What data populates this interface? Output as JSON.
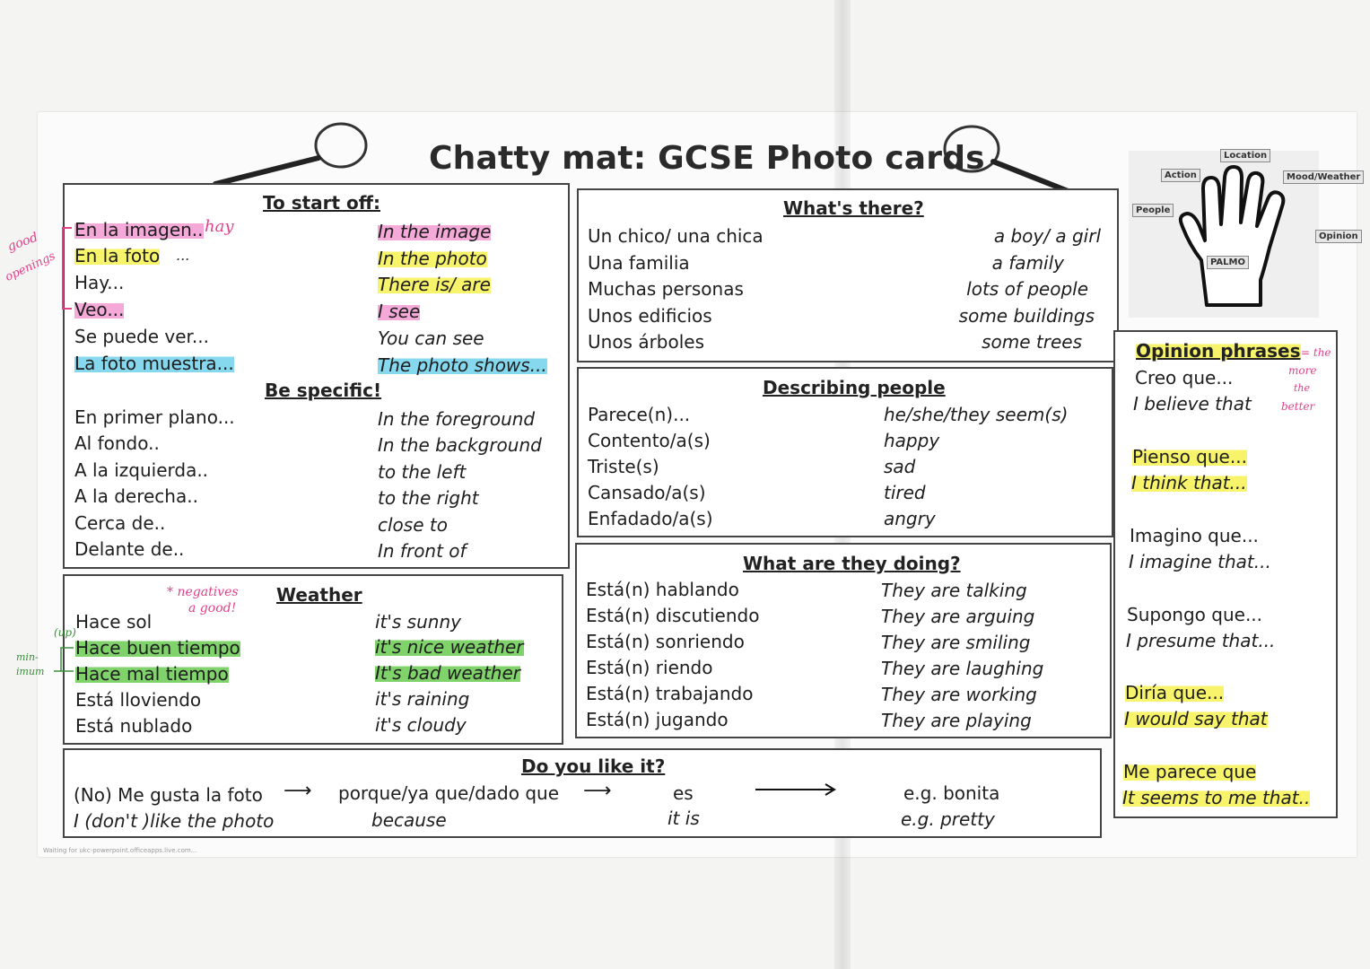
{
  "title": "Chatty mat: GCSE Photo cards",
  "start": {
    "heading": "To start off:",
    "rows": [
      {
        "es": "En la imagen..",
        "en": "In the image"
      },
      {
        "es": "En la foto",
        "en": "In the photo"
      },
      {
        "es": "Hay...",
        "en": "There is/ are"
      },
      {
        "es": "Veo...",
        "en": "I see"
      },
      {
        "es": "Se puede ver...",
        "en": "You can see"
      },
      {
        "es": "La foto muestra...",
        "en": "The photo shows..."
      }
    ],
    "specific_heading": "Be specific!",
    "specific_rows": [
      {
        "es": "En primer plano...",
        "en": "In the foreground"
      },
      {
        "es": "Al fondo..",
        "en": "In the background"
      },
      {
        "es": "A la izquierda..",
        "en": "to the left"
      },
      {
        "es": "A la derecha..",
        "en": "to the right"
      },
      {
        "es": "Cerca de..",
        "en": "close to"
      },
      {
        "es": "Delante de..",
        "en": "In front of"
      }
    ]
  },
  "weather": {
    "heading": "Weather",
    "rows": [
      {
        "es": "Hace sol",
        "en": "it's sunny"
      },
      {
        "es": "Hace buen tiempo",
        "en": "it's nice weather"
      },
      {
        "es": "Hace mal tiempo",
        "en": "It's bad weather"
      },
      {
        "es": "Está lloviendo",
        "en": "it's raining"
      },
      {
        "es": "Está nublado",
        "en": "it's cloudy"
      }
    ]
  },
  "whats_there": {
    "heading": "What's there?",
    "rows": [
      {
        "es": "Un chico/ una chica",
        "en": "a boy/ a girl"
      },
      {
        "es": "Una familia",
        "en": "a family"
      },
      {
        "es": "Muchas personas",
        "en": "lots of people"
      },
      {
        "es": "Unos edificios",
        "en": "some buildings"
      },
      {
        "es": "Unos árboles",
        "en": "some trees"
      }
    ]
  },
  "describing": {
    "heading": "Describing people",
    "rows": [
      {
        "es": "Parece(n)...",
        "en": "he/she/they seem(s)"
      },
      {
        "es": "Contento/a(s)",
        "en": "happy"
      },
      {
        "es": "Triste(s)",
        "en": "sad"
      },
      {
        "es": "Cansado/a(s)",
        "en": "tired"
      },
      {
        "es": "Enfadado/a(s)",
        "en": "angry"
      }
    ]
  },
  "doing": {
    "heading": "What are they doing?",
    "rows": [
      {
        "es": "Está(n) hablando",
        "en": "They are talking"
      },
      {
        "es": "Está(n) discutiendo",
        "en": "They are arguing"
      },
      {
        "es": "Está(n) sonriendo",
        "en": "They are smiling"
      },
      {
        "es": "Está(n) riendo",
        "en": "They are laughing"
      },
      {
        "es": "Está(n) trabajando",
        "en": "They are working"
      },
      {
        "es": "Está(n) jugando",
        "en": "They are playing"
      }
    ]
  },
  "like": {
    "heading": "Do you like it?",
    "es1": "(No) Me gusta la foto",
    "en1": "I (don't )like the photo",
    "es2": "porque/ya que/dado que",
    "en2": "because",
    "es3": "es",
    "en3": "it is",
    "es4": "e.g. bonita",
    "en4": "e.g. pretty"
  },
  "opinion": {
    "heading": "Opinion phrases",
    "rows": [
      {
        "es": "Creo que...",
        "en": "I believe that"
      },
      {
        "es": "Pienso que...",
        "en": "I think that..."
      },
      {
        "es": "Imagino que...",
        "en": "I imagine that..."
      },
      {
        "es": "Supongo que...",
        "en": "I presume that..."
      },
      {
        "es": "Diría que...",
        "en": "I would say that"
      },
      {
        "es": "Me parece que",
        "en": "It seems to me that.."
      }
    ]
  },
  "hand": {
    "labels": [
      "Location",
      "Action",
      "Mood/Weather",
      "People",
      "Opinion",
      "PALMO"
    ]
  },
  "annotations": {
    "good_openings": [
      "good",
      "openings"
    ],
    "hay": "hay",
    "dots": "...",
    "negatives": "negatives",
    "a_good": "a good!",
    "up": "(up)",
    "min": "min-",
    "imum": "imum",
    "the_more": [
      "the",
      "more",
      "the",
      "better"
    ]
  },
  "footer": "Waiting for ukc-powerpoint.officeapps.live.com..."
}
